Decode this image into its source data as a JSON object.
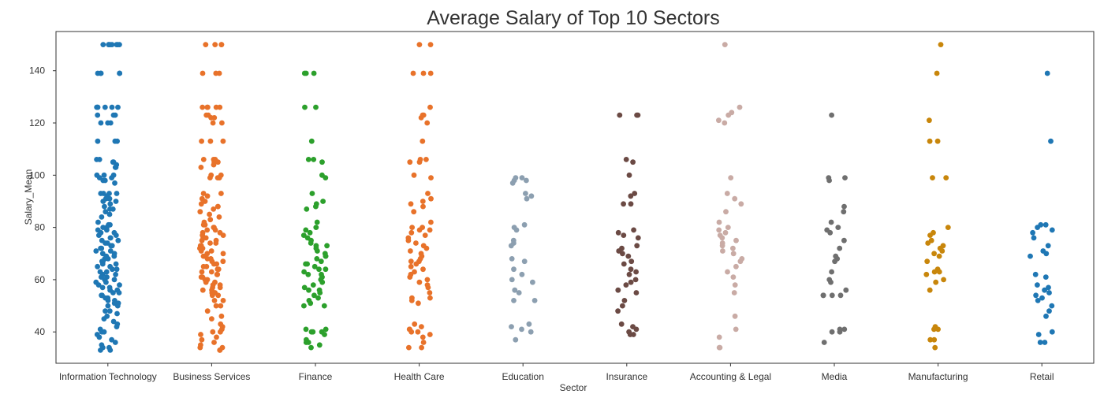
{
  "chart_data": {
    "type": "scatter",
    "title": "Average Salary of Top 10 Sectors",
    "xlabel": "Sector",
    "ylabel": "Salary_Mean",
    "ylim": [
      28,
      155
    ],
    "yticks": [
      40,
      60,
      80,
      100,
      120,
      140
    ],
    "grid": false,
    "legend": "none",
    "series": [
      {
        "category": "Information Technology",
        "color": "#1f77b4",
        "values": [
          150,
          150,
          150,
          150,
          150,
          150,
          150,
          150,
          139,
          139,
          139,
          139,
          139,
          126,
          126,
          126,
          126,
          126,
          126,
          123,
          123,
          123,
          120,
          120,
          120,
          113,
          113,
          113,
          106,
          106,
          105,
          105,
          104,
          103,
          103,
          100,
          100,
          100,
          99,
          99,
          98,
          98,
          97,
          93,
          93,
          93,
          93,
          92,
          91,
          91,
          90,
          90,
          89,
          88,
          87,
          87,
          86,
          85,
          84,
          82,
          81,
          81,
          80,
          80,
          79,
          79,
          78,
          78,
          77,
          77,
          76,
          76,
          75,
          75,
          74,
          74,
          73,
          73,
          72,
          72,
          71,
          71,
          70,
          70,
          69,
          69,
          68,
          68,
          67,
          67,
          66,
          66,
          65,
          65,
          64,
          64,
          63,
          63,
          62,
          62,
          61,
          61,
          60,
          60,
          59,
          59,
          58,
          58,
          57,
          57,
          56,
          56,
          55,
          55,
          54,
          54,
          53,
          53,
          52,
          52,
          51,
          51,
          50,
          50,
          48,
          48,
          47,
          46,
          45,
          44,
          43,
          42,
          41,
          40,
          40,
          39,
          38,
          37,
          36,
          35,
          34,
          34,
          33,
          33
        ]
      },
      {
        "category": "Business Services",
        "color": "#e8722a",
        "values": [
          150,
          150,
          150,
          150,
          139,
          139,
          139,
          126,
          126,
          126,
          126,
          126,
          123,
          123,
          122,
          122,
          120,
          120,
          113,
          113,
          113,
          106,
          106,
          106,
          105,
          105,
          104,
          103,
          100,
          100,
          99,
          99,
          99,
          93,
          93,
          92,
          91,
          90,
          89,
          88,
          88,
          87,
          86,
          85,
          84,
          83,
          82,
          81,
          81,
          80,
          80,
          79,
          79,
          78,
          78,
          77,
          77,
          76,
          76,
          75,
          75,
          74,
          74,
          73,
          73,
          72,
          72,
          71,
          71,
          70,
          70,
          69,
          69,
          68,
          68,
          67,
          67,
          66,
          66,
          65,
          65,
          64,
          64,
          63,
          63,
          62,
          62,
          61,
          61,
          60,
          60,
          59,
          59,
          58,
          58,
          57,
          57,
          56,
          56,
          55,
          55,
          54,
          54,
          52,
          52,
          50,
          50,
          48,
          46,
          45,
          43,
          42,
          41,
          40,
          40,
          39,
          38,
          37,
          36,
          35,
          34,
          34,
          33,
          33
        ]
      },
      {
        "category": "Finance",
        "color": "#2ca02c",
        "values": [
          139,
          139,
          139,
          126,
          126,
          113,
          106,
          106,
          105,
          100,
          99,
          93,
          90,
          89,
          88,
          87,
          82,
          80,
          79,
          78,
          77,
          76,
          75,
          74,
          73,
          73,
          72,
          71,
          70,
          69,
          69,
          68,
          67,
          66,
          66,
          65,
          64,
          64,
          63,
          62,
          62,
          61,
          60,
          59,
          58,
          57,
          56,
          56,
          55,
          54,
          53,
          52,
          51,
          50,
          50,
          41,
          41,
          40,
          40,
          40,
          39,
          37,
          36,
          36,
          35,
          34
        ]
      },
      {
        "category": "Health Care",
        "color": "#e8722a",
        "values": [
          150,
          150,
          139,
          139,
          139,
          126,
          123,
          123,
          122,
          120,
          113,
          106,
          106,
          105,
          105,
          100,
          99,
          93,
          91,
          90,
          89,
          88,
          86,
          82,
          80,
          80,
          79,
          79,
          78,
          77,
          76,
          75,
          74,
          73,
          72,
          71,
          70,
          69,
          68,
          67,
          67,
          66,
          65,
          64,
          63,
          62,
          61,
          60,
          59,
          58,
          57,
          55,
          53,
          53,
          52,
          51,
          43,
          42,
          41,
          41,
          40,
          40,
          39,
          38,
          36,
          34,
          34
        ]
      },
      {
        "category": "Education",
        "color": "#8c9fb0",
        "values": [
          99,
          99,
          98,
          98,
          97,
          93,
          92,
          91,
          81,
          80,
          79,
          75,
          74,
          73,
          68,
          67,
          64,
          62,
          60,
          59,
          56,
          55,
          52,
          52,
          43,
          42,
          41,
          40,
          37
        ]
      },
      {
        "category": "Insurance",
        "color": "#6b4a44",
        "values": [
          123,
          123,
          123,
          106,
          105,
          100,
          93,
          92,
          89,
          89,
          79,
          78,
          77,
          76,
          73,
          72,
          71,
          70,
          69,
          67,
          66,
          64,
          63,
          62,
          60,
          59,
          58,
          56,
          55,
          52,
          50,
          48,
          43,
          42,
          41,
          40,
          39,
          39
        ]
      },
      {
        "category": "Accounting & Legal",
        "color": "#c9aba5",
        "values": [
          150,
          126,
          124,
          123,
          121,
          120,
          99,
          93,
          91,
          89,
          86,
          82,
          80,
          79,
          78,
          77,
          76,
          75,
          74,
          73,
          72,
          71,
          70,
          68,
          67,
          65,
          63,
          61,
          58,
          55,
          46,
          41,
          38,
          34,
          34
        ]
      },
      {
        "category": "Media",
        "color": "#6f6f6f",
        "values": [
          123,
          99,
          99,
          98,
          88,
          86,
          82,
          80,
          79,
          78,
          75,
          72,
          69,
          68,
          67,
          63,
          60,
          59,
          56,
          54,
          54,
          54,
          54,
          41,
          41,
          40,
          40,
          36
        ]
      },
      {
        "category": "Manufacturing",
        "color": "#c8860b",
        "values": [
          150,
          139,
          121,
          113,
          113,
          99,
          99,
          80,
          78,
          77,
          75,
          74,
          73,
          72,
          71,
          70,
          69,
          67,
          64,
          63,
          63,
          62,
          60,
          59,
          56,
          42,
          41,
          41,
          37,
          37,
          34
        ]
      },
      {
        "category": "Retail",
        "color": "#1f77b4",
        "values": [
          139,
          113,
          81,
          81,
          80,
          79,
          78,
          76,
          73,
          71,
          70,
          69,
          62,
          61,
          58,
          57,
          56,
          55,
          54,
          53,
          52,
          50,
          48,
          46,
          40,
          39,
          36,
          36
        ]
      }
    ]
  }
}
